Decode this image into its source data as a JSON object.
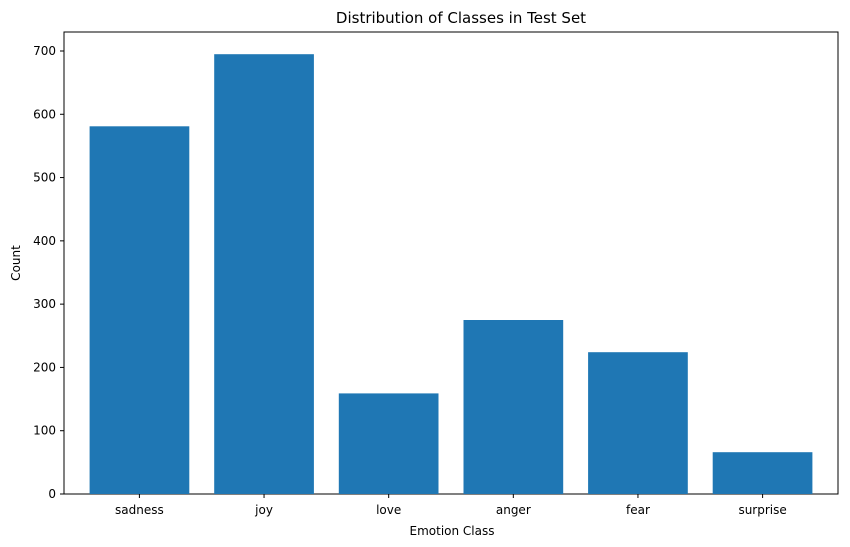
{
  "chart_data": {
    "type": "bar",
    "title": "Distribution of Classes in Test Set",
    "xlabel": "Emotion Class",
    "ylabel": "Count",
    "categories": [
      "sadness",
      "joy",
      "love",
      "anger",
      "fear",
      "surprise"
    ],
    "values": [
      581,
      695,
      159,
      275,
      224,
      66
    ],
    "ylim": [
      0,
      730
    ],
    "yticks": [
      0,
      100,
      200,
      300,
      400,
      500,
      600,
      700
    ],
    "bar_color": "#1f77b4",
    "grid": false,
    "legend": "none"
  }
}
